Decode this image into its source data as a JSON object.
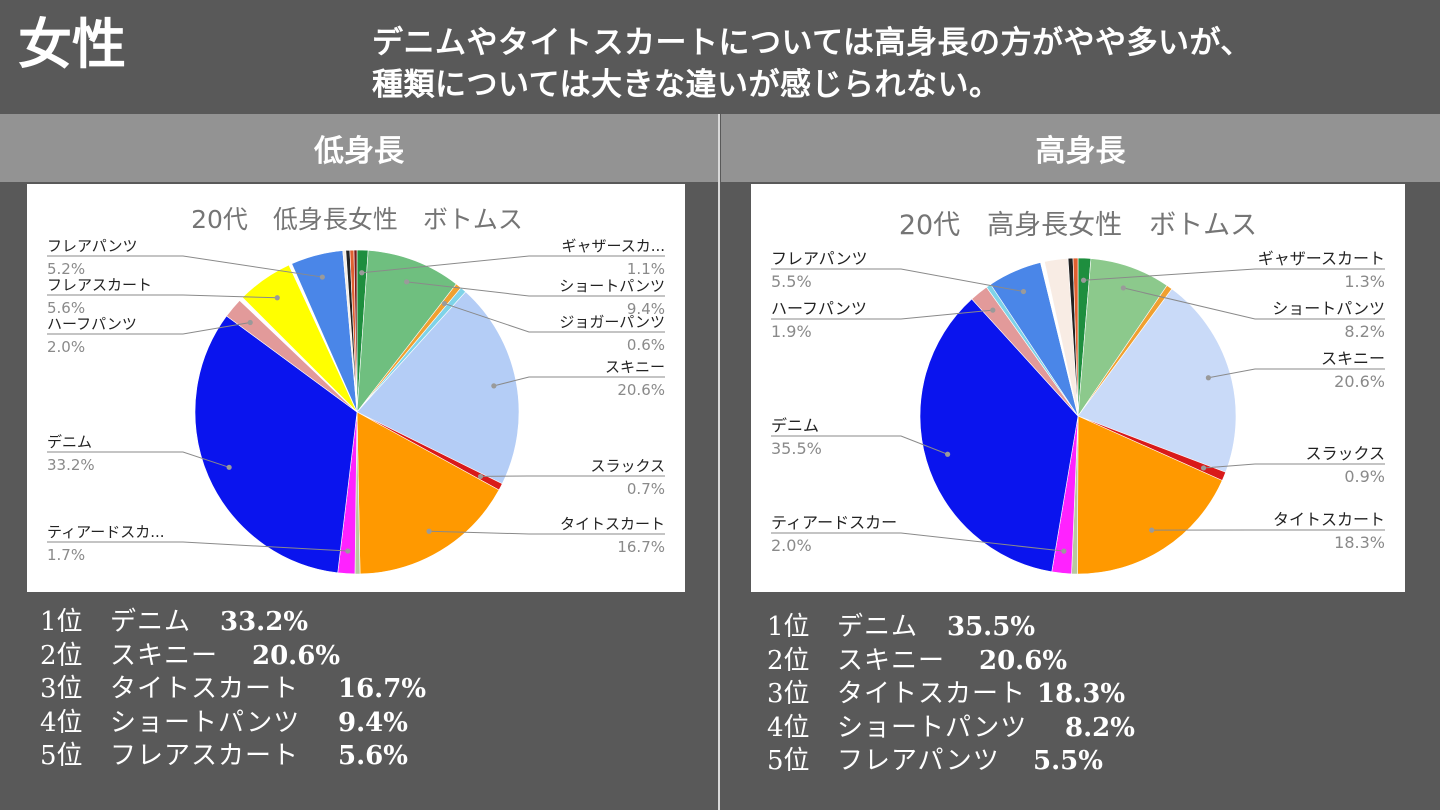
{
  "header": {
    "title": "女性",
    "description_line1": "デニムやタイトスカートについては高身長の方がやや多いが、",
    "description_line2": "種類については大きな違いが感じられない。"
  },
  "sections": {
    "left_label": "低身長",
    "right_label": "高身長"
  },
  "chart_data": [
    {
      "type": "pie",
      "title": "20代　低身長女性　ボトムス",
      "slices": [
        {
          "label": "ギャザースカ...",
          "value": 1.1,
          "pct_label": "1.1%",
          "color": "#1e8e3e"
        },
        {
          "label": "ショートパンツ",
          "value": 9.4,
          "pct_label": "9.4%",
          "color": "#6fbf7f"
        },
        {
          "label": "ジョガーパンツ",
          "value": 0.6,
          "pct_label": "0.6%",
          "color": "#f0a030"
        },
        {
          "label": "",
          "value": 0.6,
          "pct_label": "",
          "color": "#7fd3e8"
        },
        {
          "label": "スキニー",
          "value": 20.6,
          "pct_label": "20.6%",
          "color": "#b4cdf6"
        },
        {
          "label": "スラックス",
          "value": 0.7,
          "pct_label": "0.7%",
          "color": "#d91a1a"
        },
        {
          "label": "タイトスカート",
          "value": 16.7,
          "pct_label": "16.7%",
          "color": "#ff9900"
        },
        {
          "label": "",
          "value": 0.5,
          "pct_label": "",
          "color": "#b7c9a0"
        },
        {
          "label": "ティアードスカ...",
          "value": 1.7,
          "pct_label": "1.7%",
          "color": "#ff22ff"
        },
        {
          "label": "デニム",
          "value": 33.2,
          "pct_label": "33.2%",
          "color": "#0a14ee"
        },
        {
          "label": "ハーフパンツ",
          "value": 2.0,
          "pct_label": "2.0%",
          "color": "#e29a9a"
        },
        {
          "label": "",
          "value": 0.4,
          "pct_label": "",
          "color": "#ffffff"
        },
        {
          "label": "フレアスカート",
          "value": 5.6,
          "pct_label": "5.6%",
          "color": "#ffff00"
        },
        {
          "label": "",
          "value": 0.3,
          "pct_label": "",
          "color": "#ffffff"
        },
        {
          "label": "フレアパンツ",
          "value": 5.2,
          "pct_label": "5.2%",
          "color": "#4a86e8"
        },
        {
          "label": "",
          "value": 0.3,
          "pct_label": "",
          "color": "#f5ede4"
        },
        {
          "label": "",
          "value": 0.4,
          "pct_label": "",
          "color": "#222222"
        },
        {
          "label": "",
          "value": 0.4,
          "pct_label": "",
          "color": "#e06030"
        },
        {
          "label": "",
          "value": 0.3,
          "pct_label": "",
          "color": "#7a1a1a"
        }
      ]
    },
    {
      "type": "pie",
      "title": "20代　高身長女性　ボトムス",
      "slices": [
        {
          "label": "ギャザースカート",
          "value": 1.3,
          "pct_label": "1.3%",
          "color": "#1e8e3e"
        },
        {
          "label": "ショートパンツ",
          "value": 8.2,
          "pct_label": "8.2%",
          "color": "#8cc98c"
        },
        {
          "label": "",
          "value": 0.6,
          "pct_label": "",
          "color": "#f0a030"
        },
        {
          "label": "スキニー",
          "value": 20.6,
          "pct_label": "20.6%",
          "color": "#c9daf8"
        },
        {
          "label": "スラックス",
          "value": 0.9,
          "pct_label": "0.9%",
          "color": "#d91a1a"
        },
        {
          "label": "タイトスカート",
          "value": 18.3,
          "pct_label": "18.3%",
          "color": "#ff9900"
        },
        {
          "label": "",
          "value": 0.6,
          "pct_label": "",
          "color": "#b7c9a0"
        },
        {
          "label": "ティアードスカー",
          "value": 2.0,
          "pct_label": "2.0%",
          "color": "#ff22ff"
        },
        {
          "label": "デニム",
          "value": 35.5,
          "pct_label": "35.5%",
          "color": "#0a14ee"
        },
        {
          "label": "ハーフパンツ",
          "value": 1.9,
          "pct_label": "1.9%",
          "color": "#e29a9a"
        },
        {
          "label": "",
          "value": 0.5,
          "pct_label": "",
          "color": "#7fd3e8"
        },
        {
          "label": "フレアパンツ",
          "value": 5.5,
          "pct_label": "5.5%",
          "color": "#4a86e8"
        },
        {
          "label": "",
          "value": 0.4,
          "pct_label": "",
          "color": "#ffffff"
        },
        {
          "label": "",
          "value": 2.4,
          "pct_label": "",
          "color": "#f8ece4"
        },
        {
          "label": "",
          "value": 0.5,
          "pct_label": "",
          "color": "#222222"
        },
        {
          "label": "",
          "value": 0.5,
          "pct_label": "",
          "color": "#e06030"
        }
      ]
    }
  ],
  "rankings": {
    "left": [
      {
        "pos": "1位",
        "name": "デニム",
        "pct": "33.2%"
      },
      {
        "pos": "2位",
        "name": "スキニー",
        "pct": "20.6%"
      },
      {
        "pos": "3位",
        "name": "タイトスカート",
        "pct": "16.7%"
      },
      {
        "pos": "4位",
        "name": "ショートパンツ",
        "pct": "9.4%"
      },
      {
        "pos": "5位",
        "name": "フレアスカート",
        "pct": "5.6%"
      }
    ],
    "right": [
      {
        "pos": "1位",
        "name": "デニム",
        "pct": "35.5%"
      },
      {
        "pos": "2位",
        "name": "スキニー",
        "pct": "20.6%"
      },
      {
        "pos": "3位",
        "name": "タイトスカート",
        "pct": "18.3%"
      },
      {
        "pos": "4位",
        "name": "ショートパンツ",
        "pct": "8.2%"
      },
      {
        "pos": "5位",
        "name": "フレアパンツ",
        "pct": "5.5%"
      }
    ]
  }
}
